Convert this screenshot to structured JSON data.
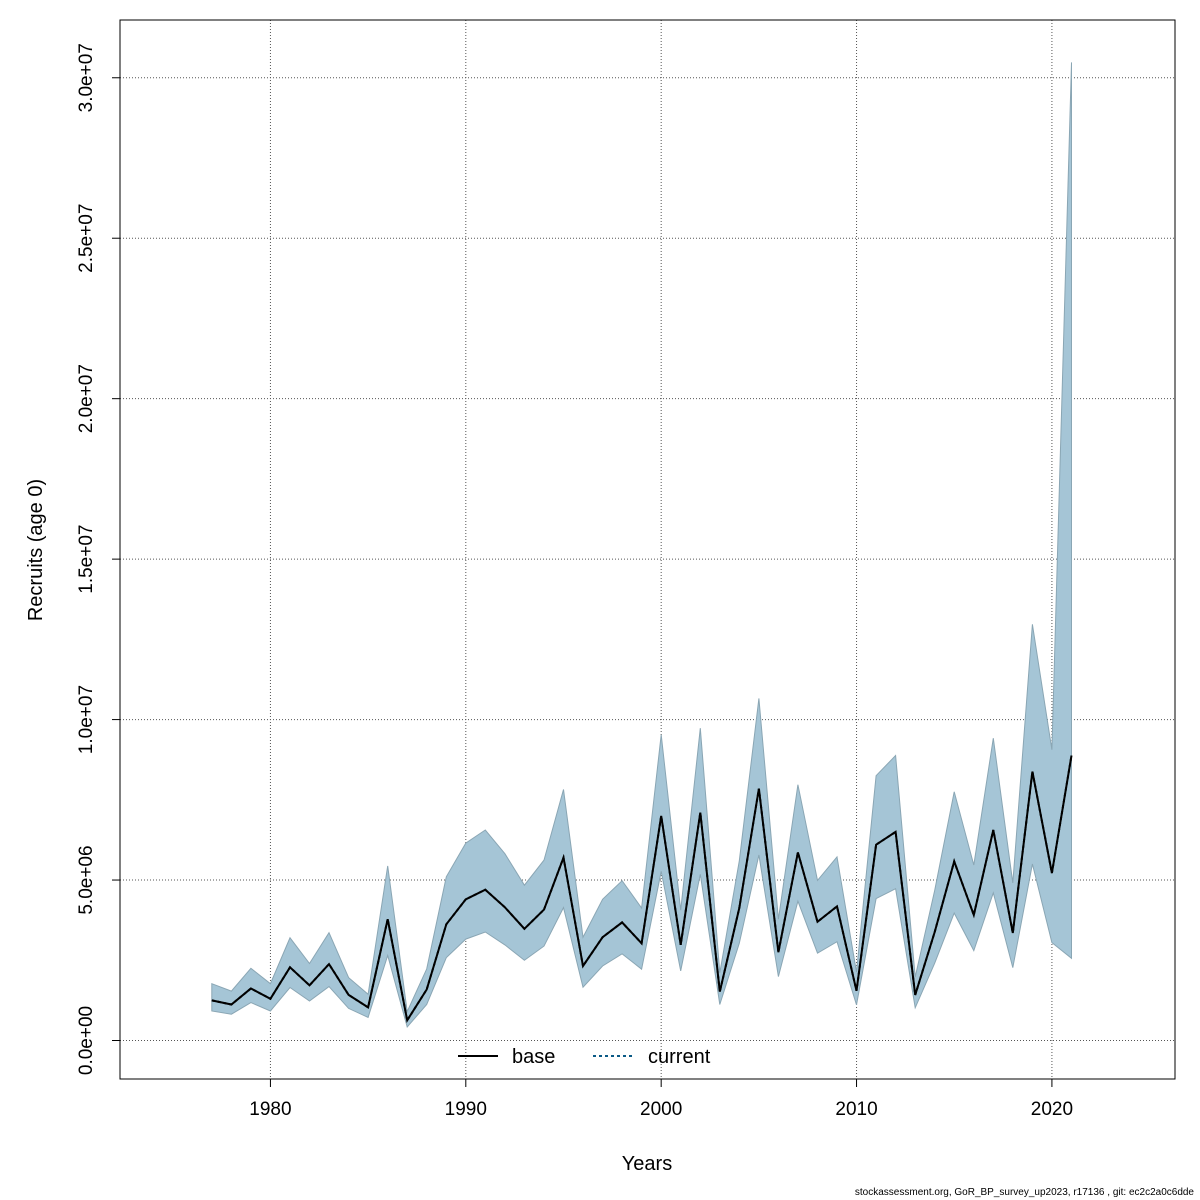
{
  "chart_data": {
    "type": "line",
    "title": "",
    "xlabel": "Years",
    "ylabel": "Recruits (age 0)",
    "xlim": [
      1972.3,
      2026.3
    ],
    "ylim": [
      -1200000,
      31800000
    ],
    "xticks": [
      1980,
      1990,
      2000,
      2010,
      2020
    ],
    "yticks": [
      0,
      5000000,
      10000000,
      15000000,
      20000000,
      25000000,
      30000000
    ],
    "ytick_labels": [
      "0.0e+00",
      "5.0e+06",
      "1.0e+07",
      "1.5e+07",
      "2.0e+07",
      "2.5e+07",
      "3.0e+07"
    ],
    "grid": true,
    "legend_position": "bottom-center",
    "colors": {
      "band_fill": "#a5c5d6",
      "band_edge": "#8aa6b4",
      "base_line": "#000000",
      "current_line": "#0b5a86",
      "grid": "#555555"
    },
    "x": [
      1977,
      1978,
      1979,
      1980,
      1981,
      1982,
      1983,
      1984,
      1985,
      1986,
      1987,
      1988,
      1989,
      1990,
      1991,
      1992,
      1993,
      1994,
      1995,
      1996,
      1997,
      1998,
      1999,
      2000,
      2001,
      2002,
      2003,
      2004,
      2005,
      2006,
      2007,
      2008,
      2009,
      2010,
      2011,
      2012,
      2013,
      2014,
      2015,
      2016,
      2017,
      2018,
      2019,
      2020,
      2021
    ],
    "series": [
      {
        "name": "base",
        "style": "solid",
        "values": [
          1250000,
          1120000,
          1620000,
          1300000,
          2280000,
          1720000,
          2380000,
          1420000,
          1030000,
          3780000,
          630000,
          1590000,
          3620000,
          4400000,
          4700000,
          4150000,
          3480000,
          4080000,
          5700000,
          2320000,
          3220000,
          3680000,
          3030000,
          7000000,
          2980000,
          7100000,
          1520000,
          4130000,
          7850000,
          2750000,
          5860000,
          3700000,
          4180000,
          1550000,
          6100000,
          6500000,
          1420000,
          3380000,
          5580000,
          3910000,
          6560000,
          3350000,
          8380000,
          5220000,
          8880000
        ]
      },
      {
        "name": "current",
        "style": "dotted",
        "values": [
          1250000,
          1120000,
          1620000,
          1300000,
          2280000,
          1720000,
          2380000,
          1420000,
          1030000,
          3780000,
          630000,
          1590000,
          3620000,
          4400000,
          4700000,
          4150000,
          3480000,
          4080000,
          5700000,
          2320000,
          3220000,
          3680000,
          3030000,
          7000000,
          2980000,
          7100000,
          1520000,
          4130000,
          7850000,
          2750000,
          5860000,
          3700000,
          4180000,
          1550000,
          6100000,
          6500000,
          1420000,
          3380000,
          5580000,
          3910000,
          6560000,
          3350000,
          8380000,
          5220000,
          8880000
        ]
      }
    ],
    "interval": {
      "lower": [
        920000,
        820000,
        1180000,
        920000,
        1650000,
        1230000,
        1680000,
        1000000,
        720000,
        2650000,
        420000,
        1120000,
        2580000,
        3160000,
        3380000,
        2980000,
        2500000,
        2940000,
        4140000,
        1660000,
        2320000,
        2700000,
        2220000,
        5270000,
        2170000,
        5180000,
        1120000,
        3030000,
        5780000,
        1990000,
        4340000,
        2720000,
        3080000,
        1110000,
        4420000,
        4730000,
        1020000,
        2410000,
        3970000,
        2800000,
        4600000,
        2270000,
        5500000,
        3050000,
        2560000
      ],
      "upper": [
        1770000,
        1540000,
        2250000,
        1770000,
        3200000,
        2400000,
        3360000,
        1960000,
        1440000,
        5440000,
        900000,
        2230000,
        5100000,
        6150000,
        6560000,
        5820000,
        4840000,
        5620000,
        7820000,
        3220000,
        4400000,
        4980000,
        4130000,
        9530000,
        4060000,
        9730000,
        2110000,
        5600000,
        10660000,
        3780000,
        7970000,
        4990000,
        5720000,
        2130000,
        8250000,
        8880000,
        1980000,
        4680000,
        7750000,
        5470000,
        9420000,
        4910000,
        12970000,
        9060000,
        30480000
      ]
    }
  },
  "footnote": "stockassessment.org, GoR_BP_survey_up2023, r17136 , git: ec2c2a0c6dde"
}
